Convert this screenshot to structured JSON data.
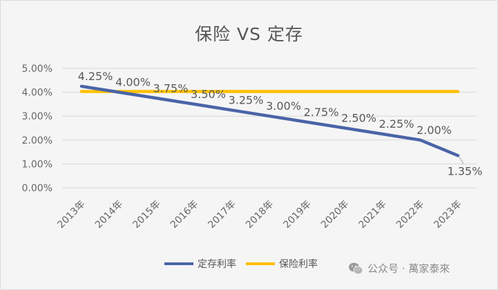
{
  "chart_data": {
    "type": "line",
    "title": "保险 VS 定存",
    "categories": [
      "2013年",
      "2014年",
      "2015年",
      "2016年",
      "2017年",
      "2018年",
      "2019年",
      "2020年",
      "2021年",
      "2022年",
      "2023年"
    ],
    "ylim": [
      0,
      5
    ],
    "y_tick_labels": [
      "0.00%",
      "1.00%",
      "2.00%",
      "3.00%",
      "4.00%",
      "5.00%"
    ],
    "y_ticks": [
      0,
      1,
      2,
      3,
      4,
      5
    ],
    "grid": true,
    "legend_position": "bottom",
    "series": [
      {
        "name": "定存利率",
        "color": "#4a64a8",
        "values": [
          4.25,
          4.0,
          3.75,
          3.5,
          3.25,
          3.0,
          2.75,
          2.5,
          2.25,
          2.0,
          1.35
        ],
        "labels": [
          "4.25%",
          "4.00%",
          "3.75%",
          "3.50%",
          "3.25%",
          "3.00%",
          "2.75%",
          "2.50%",
          "2.25%",
          "2.00%",
          "1.35%"
        ]
      },
      {
        "name": "保险利率",
        "color": "#ffc000",
        "values": [
          4.03,
          4.03,
          4.03,
          4.03,
          4.03,
          4.03,
          4.03,
          4.03,
          4.03,
          4.03,
          4.03
        ]
      }
    ]
  },
  "watermark": {
    "icon": "wechat-icon",
    "text": "公众号 · 萬家泰來"
  }
}
